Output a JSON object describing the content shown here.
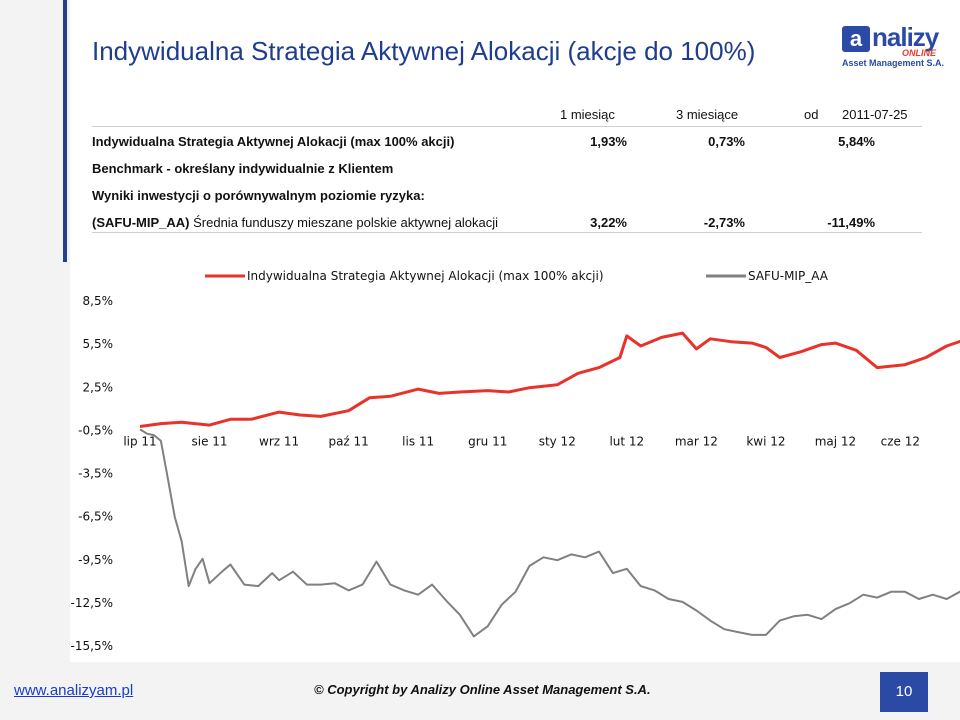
{
  "title": "Indywidualna Strategia Aktywnej Alokacji (akcje do 100%)",
  "logo": {
    "brand": "nalizy",
    "online": "ONLINE",
    "asset": "Asset Management S.A."
  },
  "returns_table": {
    "headers": [
      "1 miesiąc",
      "3 miesiące",
      "od",
      "2011-07-25"
    ],
    "rows": [
      {
        "label": "Indywidualna Strategia Aktywnej Alokacji (max 100% akcji)",
        "values": [
          "1,93%",
          "0,73%",
          "5,84%"
        ]
      },
      {
        "label": "Benchmark - określany indywidualnie z Klientem",
        "values": [
          "",
          "",
          ""
        ]
      },
      {
        "label": "Wyniki inwestycji o porównywalnym poziomie ryzyka:",
        "values": [
          "",
          "",
          ""
        ]
      },
      {
        "label_bold": "(SAFU-MIP_AA)",
        "label": " Średnia funduszy mieszane polskie aktywnej alokacji",
        "values": [
          "3,22%",
          "-2,73%",
          "-11,49%"
        ]
      }
    ]
  },
  "colors": {
    "strategy": "#e8322a",
    "safu": "#808080",
    "accent": "#243f8c"
  },
  "chart_data": {
    "type": "line",
    "x_categories": [
      "lip 11",
      "sie 11",
      "wrz 11",
      "paź 11",
      "lis 11",
      "gru 11",
      "sty 12",
      "lut 12",
      "mar 12",
      "kwi 12",
      "maj 12",
      "cze 12"
    ],
    "y_ticks": [
      "8,5%",
      "5,5%",
      "2,5%",
      "-0,5%",
      "-3,5%",
      "-6,5%",
      "-9,5%",
      "-12,5%",
      "-15,5%"
    ],
    "ylim": [
      -15.5,
      8.5
    ],
    "grid": false,
    "legend_position": "top",
    "series": [
      {
        "name": "Indywidualna Strategia Aktywnej Alokacji (max 100% akcji)",
        "color": "#e8322a",
        "x": [
          0,
          0.3,
          0.6,
          1.0,
          1.3,
          1.6,
          2.0,
          2.3,
          2.6,
          3.0,
          3.3,
          3.6,
          4.0,
          4.3,
          4.6,
          5.0,
          5.3,
          5.6,
          6.0,
          6.3,
          6.6,
          6.9,
          7.0,
          7.2,
          7.5,
          7.8,
          8.0,
          8.2,
          8.5,
          8.8,
          9.0,
          9.2,
          9.5,
          9.8,
          10.0,
          10.3,
          10.6,
          11.0,
          11.3,
          11.6,
          11.9
        ],
        "y": [
          -0.3,
          -0.1,
          0.0,
          -0.2,
          0.2,
          0.2,
          0.7,
          0.5,
          0.4,
          0.8,
          1.7,
          1.8,
          2.3,
          2.0,
          2.1,
          2.2,
          2.1,
          2.4,
          2.6,
          3.4,
          3.8,
          4.5,
          6.0,
          5.3,
          5.9,
          6.2,
          5.1,
          5.8,
          5.6,
          5.5,
          5.2,
          4.5,
          4.9,
          5.4,
          5.5,
          5.0,
          3.8,
          4.0,
          4.5,
          5.3,
          5.8
        ]
      },
      {
        "name": "SAFU-MIP_AA",
        "color": "#808080",
        "x": [
          0,
          0.1,
          0.2,
          0.3,
          0.4,
          0.5,
          0.6,
          0.7,
          0.8,
          0.9,
          1.0,
          1.2,
          1.3,
          1.5,
          1.7,
          1.9,
          2.0,
          2.2,
          2.4,
          2.6,
          2.8,
          3.0,
          3.2,
          3.4,
          3.6,
          3.8,
          4.0,
          4.2,
          4.4,
          4.6,
          4.8,
          5.0,
          5.2,
          5.4,
          5.6,
          5.8,
          6.0,
          6.2,
          6.4,
          6.6,
          6.8,
          7.0,
          7.2,
          7.4,
          7.6,
          7.8,
          8.0,
          8.2,
          8.4,
          8.6,
          8.8,
          9.0,
          9.2,
          9.4,
          9.6,
          9.8,
          10.0,
          10.2,
          10.4,
          10.6,
          10.8,
          11.0,
          11.2,
          11.4,
          11.6,
          11.9
        ],
        "y": [
          -0.5,
          -0.8,
          -0.9,
          -1.3,
          -3.9,
          -6.6,
          -8.3,
          -11.4,
          -10.2,
          -9.5,
          -11.2,
          -10.3,
          -9.9,
          -11.3,
          -11.4,
          -10.5,
          -11.0,
          -10.4,
          -11.3,
          -11.3,
          -11.2,
          -11.7,
          -11.3,
          -9.7,
          -11.3,
          -11.7,
          -12.0,
          -11.3,
          -12.4,
          -13.4,
          -14.9,
          -14.2,
          -12.7,
          -11.8,
          -10.0,
          -9.4,
          -9.6,
          -9.2,
          -9.4,
          -9.0,
          -10.5,
          -10.2,
          -11.4,
          -11.7,
          -12.3,
          -12.5,
          -13.1,
          -13.8,
          -14.4,
          -14.6,
          -14.8,
          -14.8,
          -13.8,
          -13.5,
          -13.4,
          -13.7,
          -13.0,
          -12.6,
          -12.0,
          -12.2,
          -11.8,
          -11.8,
          -12.3,
          -12.0,
          -12.3,
          -11.5
        ]
      }
    ]
  }
}
